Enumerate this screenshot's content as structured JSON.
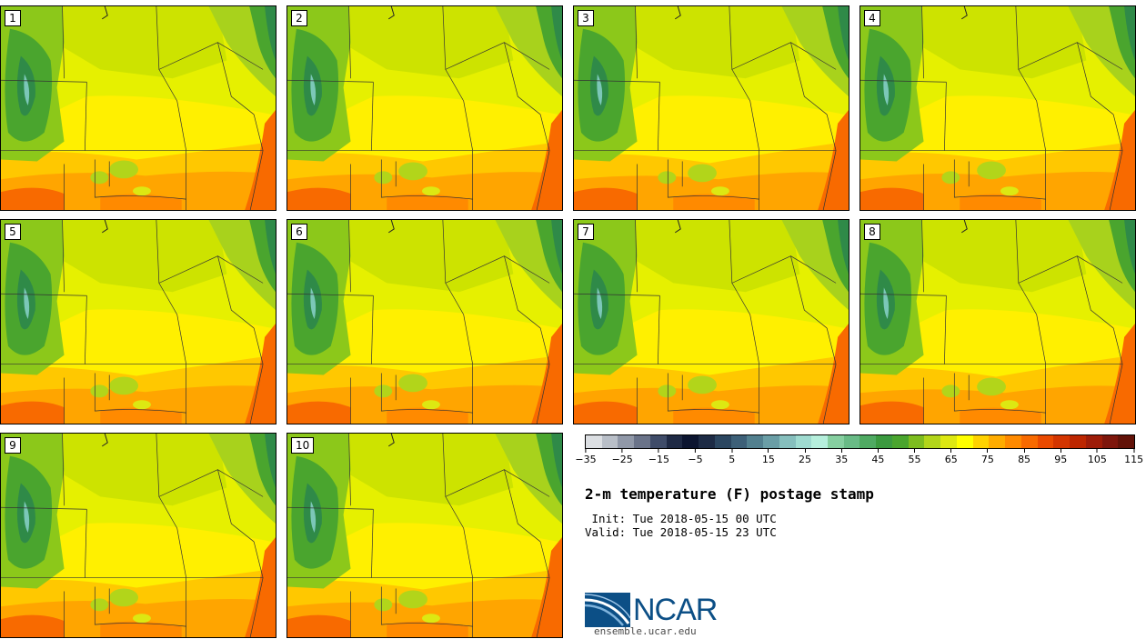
{
  "panels": [
    {
      "label": "1"
    },
    {
      "label": "2"
    },
    {
      "label": "3"
    },
    {
      "label": "4"
    },
    {
      "label": "5"
    },
    {
      "label": "6"
    },
    {
      "label": "7"
    },
    {
      "label": "8"
    },
    {
      "label": "9"
    },
    {
      "label": "10"
    }
  ],
  "colorbar": {
    "colors": [
      "#dcdfe3",
      "#b9bfc8",
      "#9098a8",
      "#6a7389",
      "#3f4c69",
      "#1f2a45",
      "#0c1530",
      "#1d2b45",
      "#2b4660",
      "#3d6078",
      "#52808f",
      "#6a9ea6",
      "#86bfbd",
      "#9fdbd0",
      "#b6efdc",
      "#86cfa0",
      "#69bb86",
      "#4faa62",
      "#3b9a3f",
      "#4aa52e",
      "#7dbd1f",
      "#b2d51a",
      "#dde812",
      "#ffff00",
      "#ffd200",
      "#ffac00",
      "#ff8a00",
      "#f86a00",
      "#ea4a00",
      "#d43500",
      "#bd2600",
      "#9e1c08",
      "#7e160c",
      "#621208"
    ],
    "ticks": [
      "−35",
      "−25",
      "−15",
      "−5",
      "5",
      "15",
      "25",
      "35",
      "45",
      "55",
      "65",
      "75",
      "85",
      "95",
      "105",
      "115"
    ]
  },
  "title": "2-m temperature (F) postage stamp",
  "init": " Init: Tue 2018-05-15 00 UTC",
  "valid": "Valid: Tue 2018-05-15 23 UTC",
  "logo": {
    "text": "NCAR",
    "site": "ensemble.ucar.edu",
    "color": "#0c4f86"
  }
}
